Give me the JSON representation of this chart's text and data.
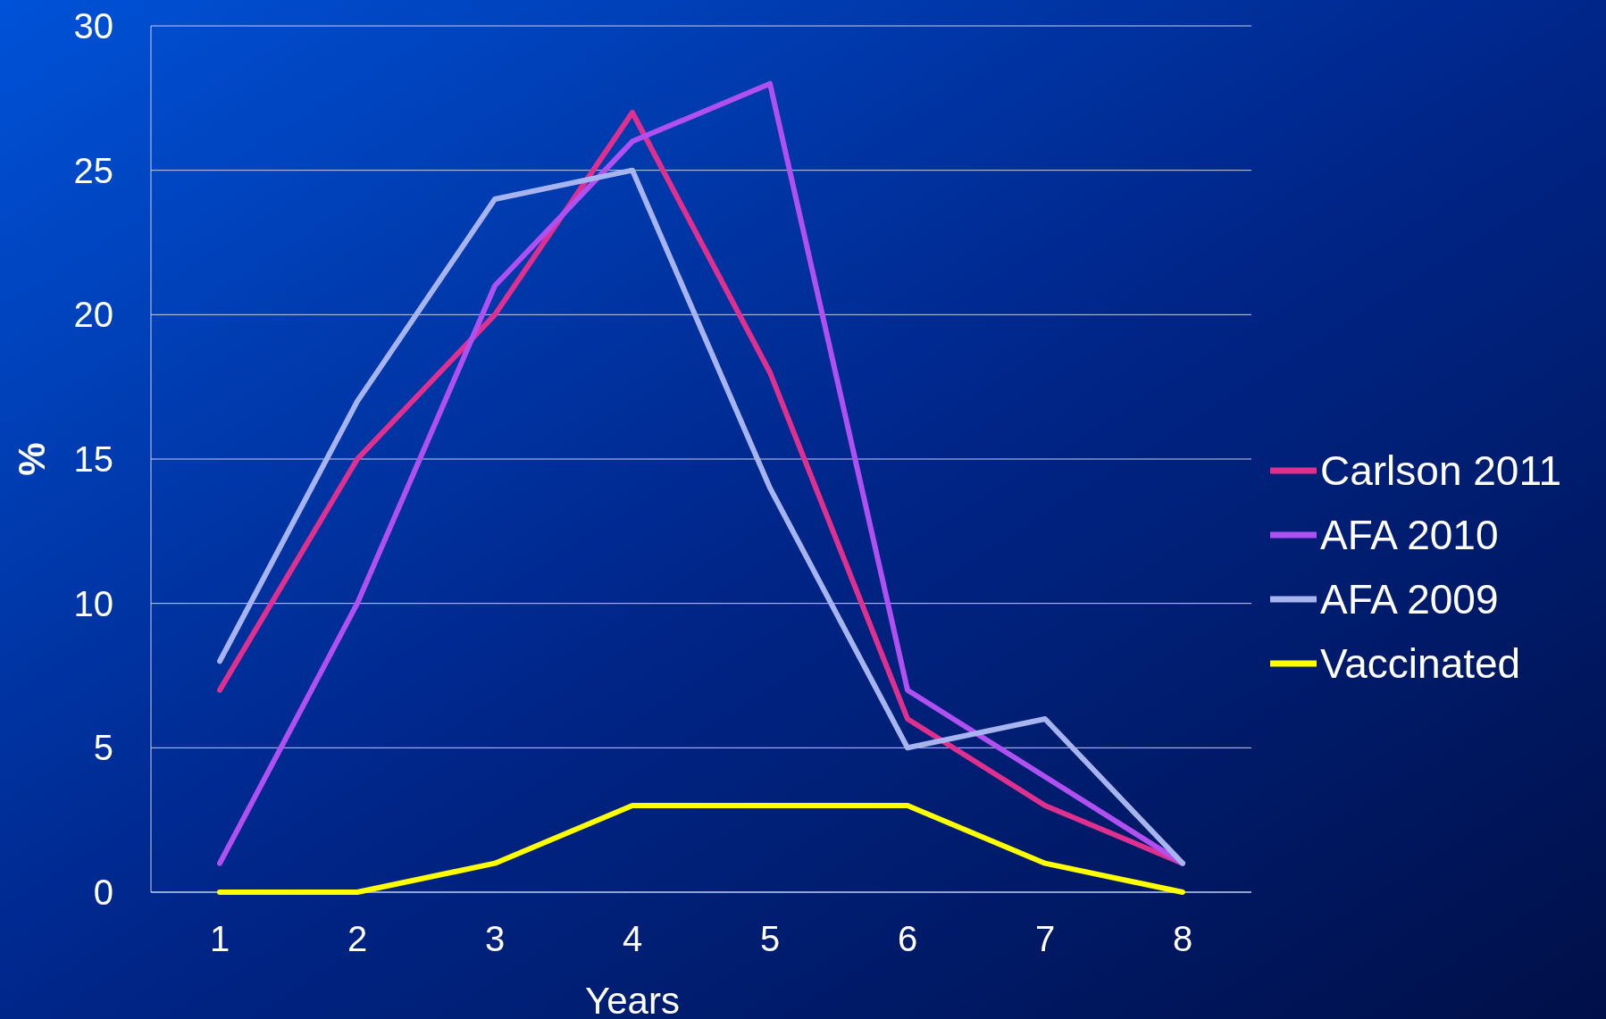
{
  "chart_data": {
    "type": "line",
    "xlabel": "Years",
    "ylabel": "%",
    "categories": [
      "1",
      "2",
      "3",
      "4",
      "5",
      "6",
      "7",
      "8"
    ],
    "ylim": [
      0,
      30
    ],
    "yticks": [
      0,
      5,
      10,
      15,
      20,
      25,
      30
    ],
    "grid": "y",
    "legend": "right",
    "marker": "none",
    "line_style": "solid",
    "series": [
      {
        "name": "Carlson 2011",
        "color": "#e0308f",
        "values": [
          7,
          15,
          20,
          27,
          18,
          6,
          3,
          1
        ]
      },
      {
        "name": "AFA 2010",
        "color": "#b050f0",
        "values": [
          1,
          10,
          21,
          26,
          28,
          7,
          4,
          1
        ]
      },
      {
        "name": "AFA 2009",
        "color": "#a8b4f0",
        "values": [
          8,
          17,
          24,
          25,
          14,
          5,
          6,
          1
        ]
      },
      {
        "name": "Vaccinated",
        "color": "#ffff00",
        "values": [
          0,
          0,
          1,
          3,
          3,
          3,
          1,
          0
        ]
      }
    ]
  }
}
